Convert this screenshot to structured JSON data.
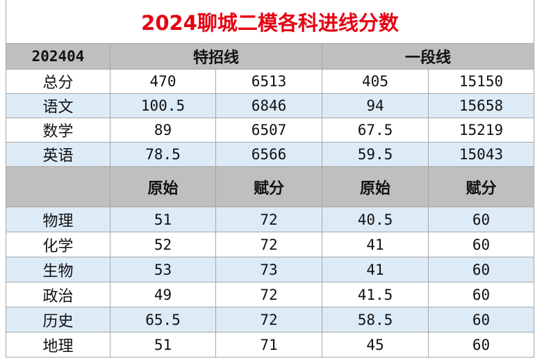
{
  "title": "2024聊城二模各科进线分数",
  "header": {
    "label": "202404",
    "groups": [
      "特招线",
      "一段线"
    ]
  },
  "rows": [
    [
      "总分",
      "470",
      "6513",
      "405",
      "15150"
    ],
    [
      "语文",
      "100.5",
      "6846",
      "94",
      "15658"
    ],
    [
      "数学",
      "89",
      "6507",
      "67.5",
      "15219"
    ],
    [
      "英语",
      "78.5",
      "6566",
      "59.5",
      "15043"
    ]
  ],
  "subheader": [
    "原始",
    "赋分",
    "原始",
    "赋分"
  ],
  "subjects": [
    [
      "物理",
      "51",
      "72",
      "40.5",
      "60"
    ],
    [
      "化学",
      "52",
      "72",
      "41",
      "60"
    ],
    [
      "生物",
      "53",
      "73",
      "41",
      "60"
    ],
    [
      "政治",
      "49",
      "72",
      "41.5",
      "60"
    ],
    [
      "历史",
      "65.5",
      "72",
      "58.5",
      "60"
    ],
    [
      "地理",
      "51",
      "71",
      "45",
      "60"
    ]
  ]
}
